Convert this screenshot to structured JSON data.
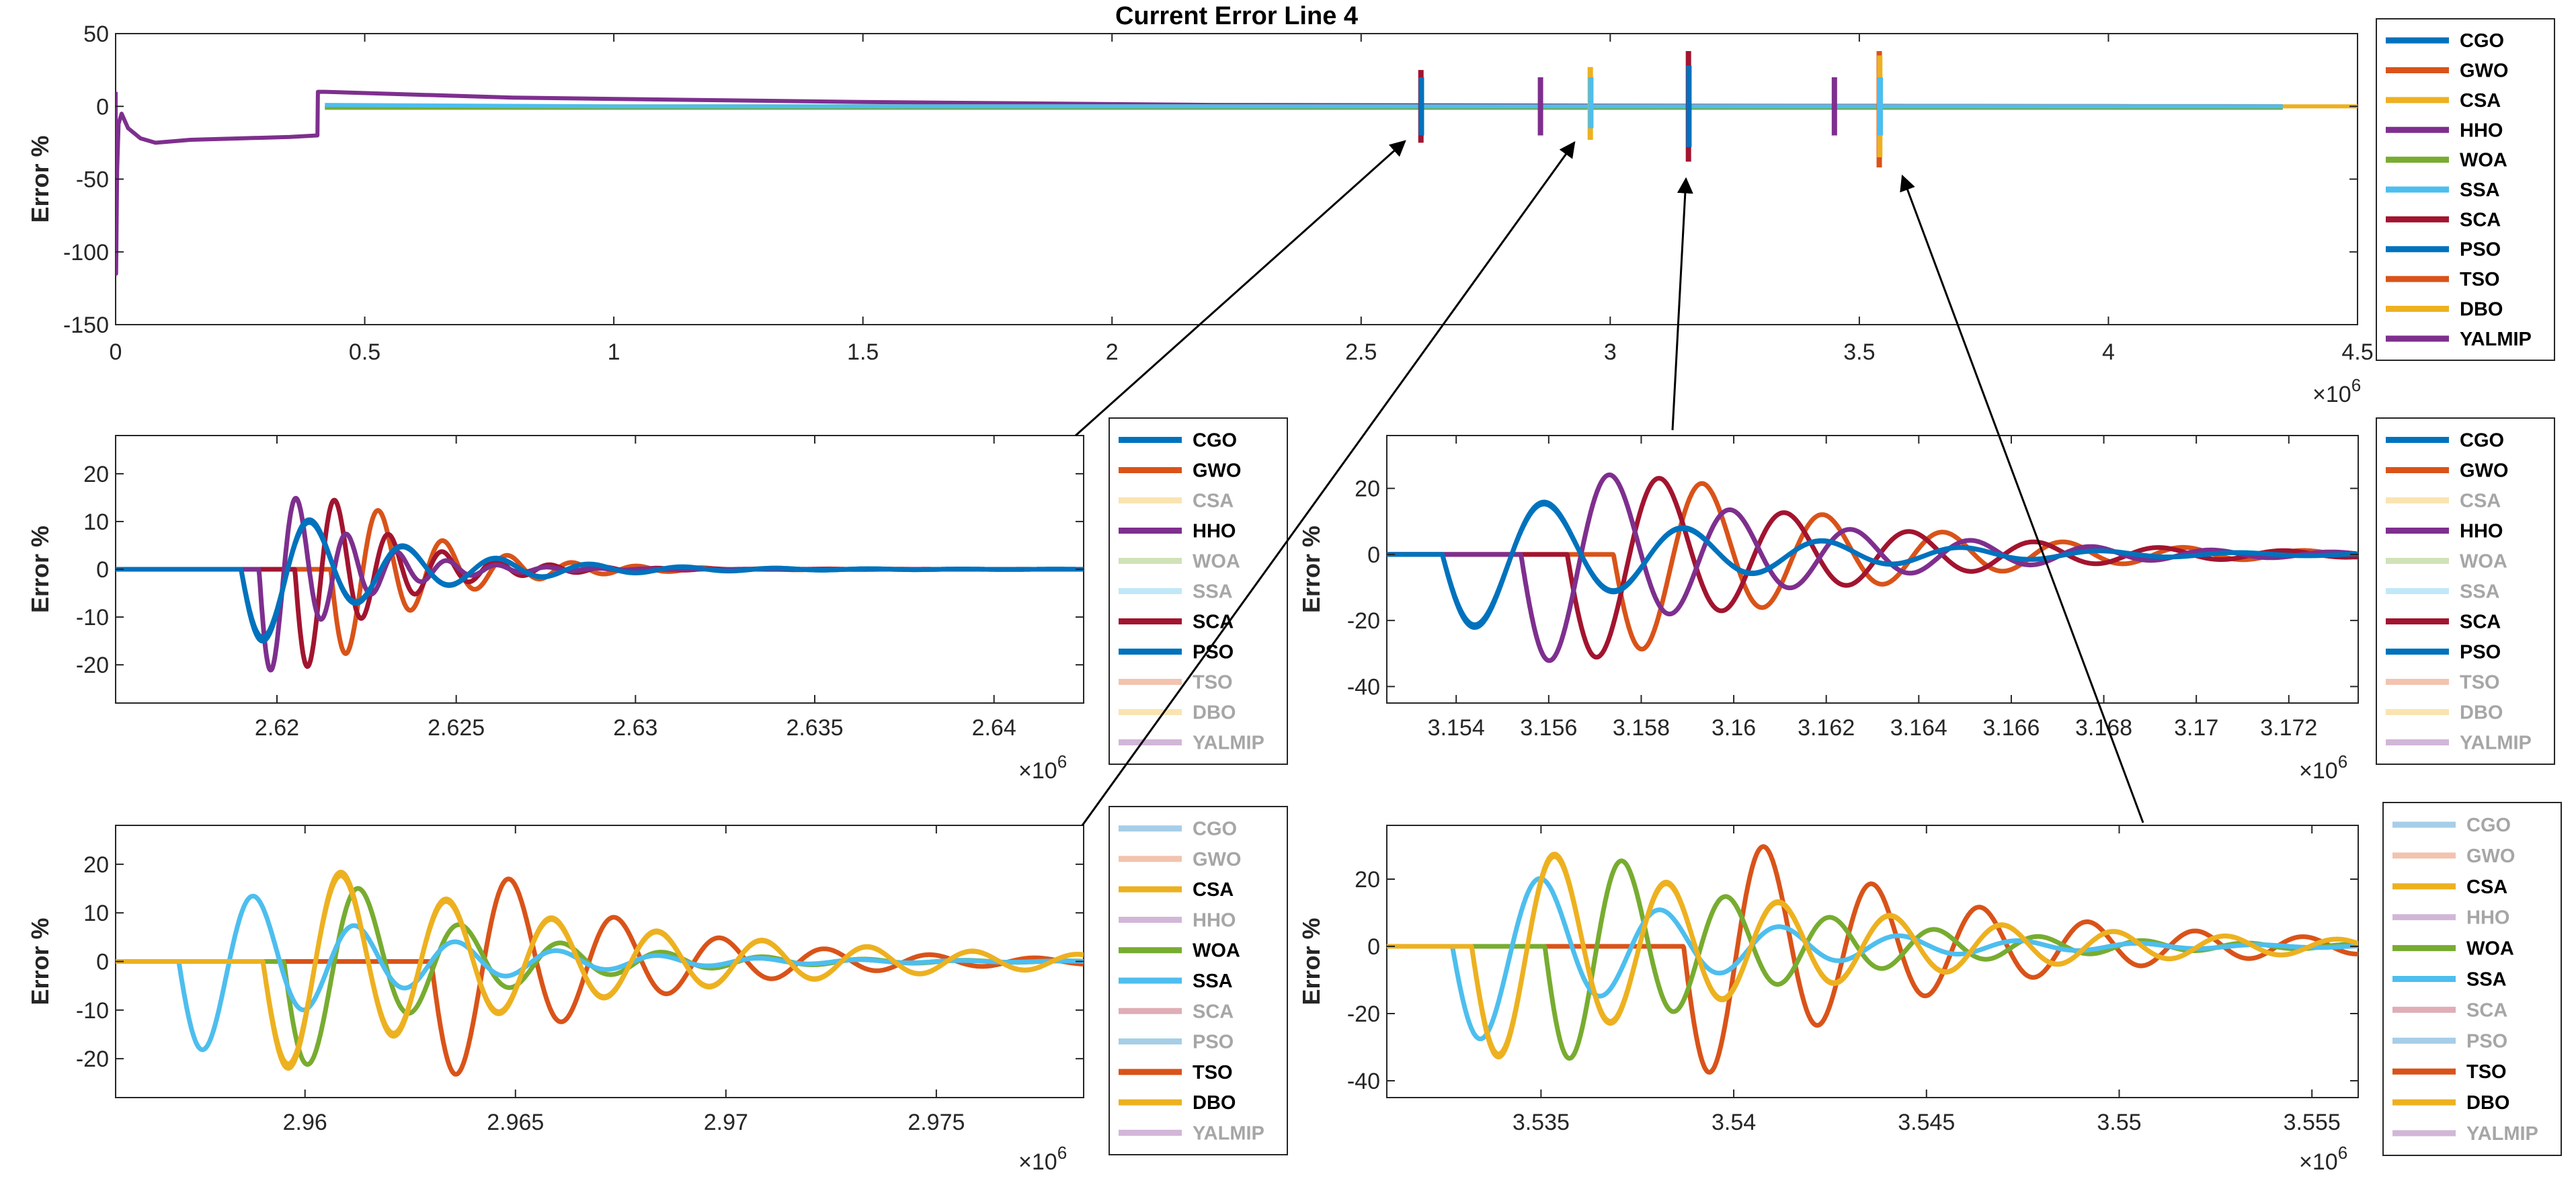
{
  "chart_data": [
    {
      "id": "overview",
      "type": "line",
      "title": "Current Error Line 4",
      "xlabel": "",
      "ylabel": "Error %",
      "xlim": [
        0,
        4.5
      ],
      "ylim": [
        -150,
        50
      ],
      "xticks": [
        0,
        0.5,
        1,
        1.5,
        2,
        2.5,
        3,
        3.5,
        4,
        4.5
      ],
      "xtick_labels": [
        "0",
        "0.5",
        "1",
        "1.5",
        "2",
        "2.5",
        "3",
        "3.5",
        "4",
        "4.5"
      ],
      "yticks": [
        50,
        0,
        -50,
        -100,
        -150
      ],
      "ytick_labels": [
        "50",
        "0",
        "-50",
        "-100",
        "-150"
      ],
      "x_multiplier": "10^6",
      "legend": [
        "CGO",
        "GWO",
        "CSA",
        "HHO",
        "WOA",
        "SSA",
        "SCA",
        "PSO",
        "TSO",
        "DBO",
        "YALMIP"
      ],
      "legend_dimmed": [],
      "legend_position": "outside-right",
      "series": [
        {
          "name": "YALMIP",
          "color": "#7E2F8E",
          "x": [
            0,
            0.001,
            0.003,
            0.006,
            0.012,
            0.025,
            0.05,
            0.08,
            0.15,
            0.25,
            0.35,
            0.405,
            0.406,
            0.42,
            0.8,
            1.5,
            2.2,
            3.0,
            3.6,
            4.0,
            4.35
          ],
          "y": [
            10,
            -115,
            -45,
            -12,
            -5,
            -15,
            -22,
            -25,
            -23,
            -22,
            -21,
            -20,
            10,
            10,
            6,
            3,
            1,
            0.5,
            0.3,
            0.2,
            0.1
          ]
        },
        {
          "name": "DBO",
          "color": "#EDB120",
          "x": [
            0.42,
            1.0,
            2.0,
            3.0,
            3.5,
            4.0,
            4.5
          ],
          "y": [
            0,
            0,
            0,
            0,
            0,
            0,
            0
          ]
        },
        {
          "name": "WOA",
          "color": "#77AC30",
          "x": [
            0.42,
            1.0,
            2.0,
            3.0,
            4.0,
            4.35
          ],
          "y": [
            -1,
            -1,
            -1,
            -1,
            -1,
            -1
          ]
        },
        {
          "name": "SSA",
          "color": "#4DBEEE",
          "x": [
            0.42,
            1.0,
            2.0,
            3.0,
            4.0,
            4.35
          ],
          "y": [
            1,
            0,
            0,
            0,
            0,
            0
          ]
        }
      ],
      "events": [
        {
          "x": 2.62,
          "ymin": -25,
          "ymax": 25,
          "color": "#A2142F"
        },
        {
          "x": 2.621,
          "ymin": -20,
          "ymax": 20,
          "color": "#0072BD"
        },
        {
          "x": 2.86,
          "ymin": -20,
          "ymax": 20,
          "color": "#7E2F8E"
        },
        {
          "x": 2.96,
          "ymin": -23,
          "ymax": 27,
          "color": "#EDB120"
        },
        {
          "x": 2.961,
          "ymin": -15,
          "ymax": 20,
          "color": "#4DBEEE"
        },
        {
          "x": 3.157,
          "ymin": -38,
          "ymax": 38,
          "color": "#A2142F"
        },
        {
          "x": 3.158,
          "ymin": -28,
          "ymax": 28,
          "color": "#0072BD"
        },
        {
          "x": 3.45,
          "ymin": -20,
          "ymax": 20,
          "color": "#7E2F8E"
        },
        {
          "x": 3.54,
          "ymin": -42,
          "ymax": 38,
          "color": "#D95319"
        },
        {
          "x": 3.541,
          "ymin": -35,
          "ymax": 35,
          "color": "#EDB120"
        },
        {
          "x": 3.542,
          "ymin": -20,
          "ymax": 20,
          "color": "#4DBEEE"
        }
      ]
    },
    {
      "id": "zoom1",
      "type": "line",
      "title": "",
      "xlabel": "",
      "ylabel": "Error %",
      "xlim": [
        2.6155,
        2.6425
      ],
      "ylim": [
        -28,
        28
      ],
      "xticks": [
        2.62,
        2.625,
        2.63,
        2.635,
        2.64
      ],
      "xtick_labels": [
        "2.62",
        "2.625",
        "2.63",
        "2.635",
        "2.64"
      ],
      "yticks": [
        20,
        10,
        0,
        -10,
        -20
      ],
      "ytick_labels": [
        "20",
        "10",
        "0",
        "-10",
        "-20"
      ],
      "x_multiplier": "10^6",
      "legend": [
        "CGO",
        "GWO",
        "CSA",
        "HHO",
        "WOA",
        "SSA",
        "SCA",
        "PSO",
        "TSO",
        "DBO",
        "YALMIP"
      ],
      "legend_dimmed": [
        "CSA",
        "WOA",
        "SSA",
        "TSO",
        "DBO",
        "YALMIP"
      ],
      "legend_position": "outside-right",
      "series": [
        {
          "name": "GWO",
          "color": "#D95319",
          "t0": 2.6215,
          "amp": 21,
          "period": 0.0018,
          "tau": 0.0025
        },
        {
          "name": "SCA",
          "color": "#A2142F",
          "t0": 2.6205,
          "amp": 24,
          "period": 0.0015,
          "tau": 0.0022
        },
        {
          "name": "HHO",
          "color": "#7E2F8E",
          "t0": 2.6195,
          "amp": 25,
          "period": 0.0014,
          "tau": 0.002
        },
        {
          "name": "CGO",
          "color": "#0072BD",
          "t0": 2.619,
          "amp": 18,
          "period": 0.0026,
          "tau": 0.0035
        },
        {
          "name": "PSO",
          "color": "#0072BD",
          "t0": 2.619,
          "amp": 17,
          "period": 0.0026,
          "tau": 0.0035
        }
      ]
    },
    {
      "id": "zoom2",
      "type": "line",
      "title": "",
      "xlabel": "",
      "ylabel": "Error %",
      "xlim": [
        3.1525,
        3.1735
      ],
      "ylim": [
        -45,
        36
      ],
      "xticks": [
        3.154,
        3.156,
        3.158,
        3.16,
        3.162,
        3.164,
        3.166,
        3.168,
        3.17,
        3.172
      ],
      "xtick_labels": [
        "3.154",
        "3.156",
        "3.158",
        "3.16",
        "3.162",
        "3.164",
        "3.166",
        "3.168",
        "3.17",
        "3.172"
      ],
      "yticks": [
        20,
        0,
        -20,
        -40
      ],
      "ytick_labels": [
        "20",
        "0",
        "-20",
        "-40"
      ],
      "x_multiplier": "10^6",
      "legend": [
        "CGO",
        "GWO",
        "CSA",
        "HHO",
        "WOA",
        "SSA",
        "SCA",
        "PSO",
        "TSO",
        "DBO",
        "YALMIP"
      ],
      "legend_dimmed": [
        "CSA",
        "WOA",
        "SSA",
        "TSO",
        "DBO",
        "YALMIP"
      ],
      "legend_position": "outside-right",
      "series": [
        {
          "name": "GWO",
          "color": "#D95319",
          "t0": 3.1574,
          "amp": 33,
          "period": 0.0026,
          "tau": 0.0045
        },
        {
          "name": "SCA",
          "color": "#A2142F",
          "t0": 3.1564,
          "amp": 36,
          "period": 0.0027,
          "tau": 0.0045
        },
        {
          "name": "HHO",
          "color": "#7E2F8E",
          "t0": 3.1554,
          "amp": 37,
          "period": 0.0026,
          "tau": 0.0045
        },
        {
          "name": "CGO",
          "color": "#0072BD",
          "t0": 3.1537,
          "amp": 26,
          "period": 0.003,
          "tau": 0.0045
        },
        {
          "name": "PSO",
          "color": "#0072BD",
          "t0": 3.1537,
          "amp": 25,
          "period": 0.003,
          "tau": 0.0045
        }
      ]
    },
    {
      "id": "zoom3",
      "type": "line",
      "title": "",
      "xlabel": "",
      "ylabel": "Error %",
      "xlim": [
        2.9555,
        2.9785
      ],
      "ylim": [
        -28,
        28
      ],
      "xticks": [
        2.96,
        2.965,
        2.97,
        2.975
      ],
      "xtick_labels": [
        "2.96",
        "2.965",
        "2.97",
        "2.975"
      ],
      "yticks": [
        20,
        10,
        0,
        -10,
        -20
      ],
      "ytick_labels": [
        "20",
        "10",
        "0",
        "-10",
        "-20"
      ],
      "x_multiplier": "10^6",
      "legend": [
        "CGO",
        "GWO",
        "CSA",
        "HHO",
        "WOA",
        "SSA",
        "SCA",
        "PSO",
        "TSO",
        "DBO",
        "YALMIP"
      ],
      "legend_dimmed": [
        "CGO",
        "GWO",
        "HHO",
        "SCA",
        "PSO",
        "YALMIP"
      ],
      "legend_position": "outside-right",
      "series": [
        {
          "name": "TSO",
          "color": "#D95319",
          "t0": 2.963,
          "amp": 27,
          "period": 0.0025,
          "tau": 0.004
        },
        {
          "name": "WOA",
          "color": "#77AC30",
          "t0": 2.9595,
          "amp": 25,
          "period": 0.0024,
          "tau": 0.0035
        },
        {
          "name": "SSA",
          "color": "#4DBEEE",
          "t0": 2.957,
          "amp": 21,
          "period": 0.0024,
          "tau": 0.004
        },
        {
          "name": "DBO",
          "color": "#EDB120",
          "t0": 2.959,
          "amp": 24,
          "period": 0.0025,
          "tau": 0.007
        },
        {
          "name": "CSA",
          "color": "#EDB120",
          "t0": 2.959,
          "amp": 23,
          "period": 0.0025,
          "tau": 0.007
        }
      ]
    },
    {
      "id": "zoom4",
      "type": "line",
      "title": "",
      "xlabel": "",
      "ylabel": "Error %",
      "xlim": [
        3.531,
        3.5562
      ],
      "ylim": [
        -45,
        36
      ],
      "xticks": [
        3.535,
        3.54,
        3.545,
        3.55,
        3.555
      ],
      "xtick_labels": [
        "3.535",
        "3.54",
        "3.545",
        "3.55",
        "3.555"
      ],
      "yticks": [
        20,
        0,
        -20,
        -40
      ],
      "ytick_labels": [
        "20",
        "0",
        "-20",
        "-40"
      ],
      "x_multiplier": "10^6",
      "legend": [
        "CGO",
        "GWO",
        "CSA",
        "HHO",
        "WOA",
        "SSA",
        "SCA",
        "PSO",
        "TSO",
        "DBO",
        "YALMIP"
      ],
      "legend_dimmed": [
        "CGO",
        "GWO",
        "HHO",
        "SCA",
        "PSO",
        "YALMIP"
      ],
      "legend_position": "outside-right",
      "series": [
        {
          "name": "TSO",
          "color": "#D95319",
          "t0": 3.5387,
          "amp": 42,
          "period": 0.0028,
          "tau": 0.006
        },
        {
          "name": "WOA",
          "color": "#77AC30",
          "t0": 3.5351,
          "amp": 38,
          "period": 0.0027,
          "tau": 0.005
        },
        {
          "name": "SSA",
          "color": "#4DBEEE",
          "t0": 3.5327,
          "amp": 32,
          "period": 0.0031,
          "tau": 0.005
        },
        {
          "name": "DBO",
          "color": "#EDB120",
          "t0": 3.5332,
          "amp": 36,
          "period": 0.0029,
          "tau": 0.008
        },
        {
          "name": "CSA",
          "color": "#EDB120",
          "t0": 3.5332,
          "amp": 35,
          "period": 0.0029,
          "tau": 0.008
        }
      ]
    }
  ],
  "colors": {
    "CGO": "#0072BD",
    "GWO": "#D95319",
    "CSA": "#EDB120",
    "HHO": "#7E2F8E",
    "WOA": "#77AC30",
    "SSA": "#4DBEEE",
    "SCA": "#A2142F",
    "PSO": "#0072BD",
    "TSO": "#D95319",
    "DBO": "#EDB120",
    "YALMIP": "#7E2F8E",
    "dimmed_text": "#A6A6A6",
    "axis": "#262626"
  }
}
